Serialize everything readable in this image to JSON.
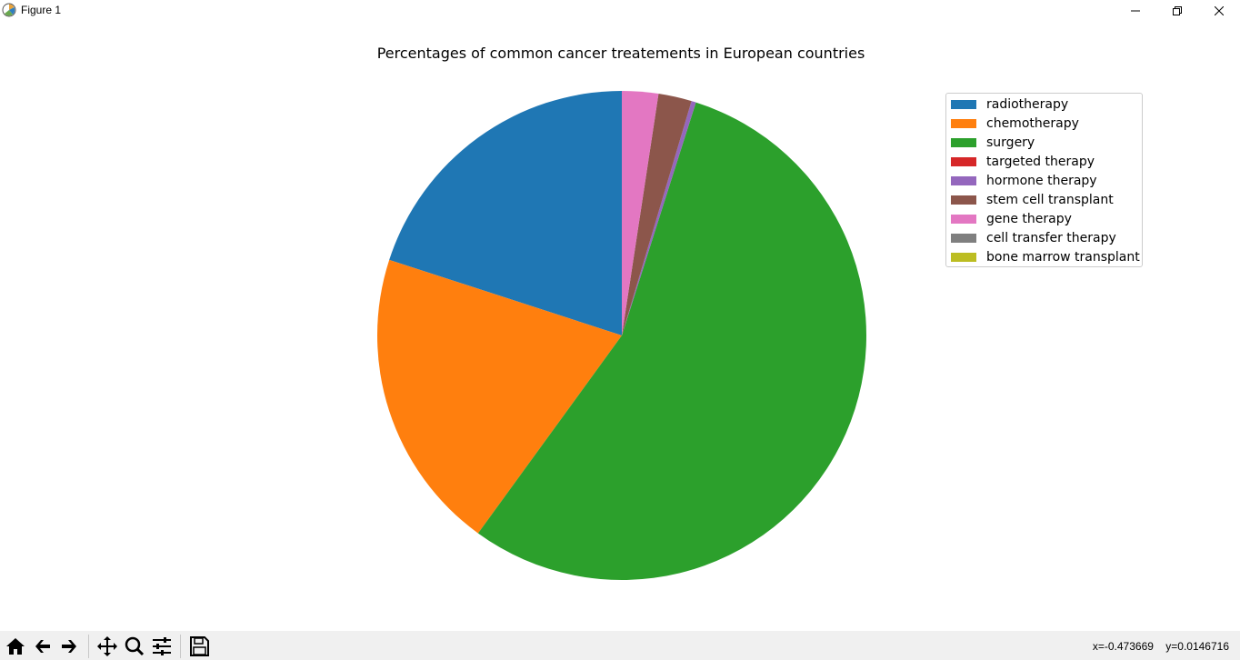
{
  "window": {
    "title": "Figure 1"
  },
  "chart_data": {
    "type": "pie",
    "title": "Percentages of common cancer treatements in European countries",
    "labels": [
      "radiotherapy",
      "chemotherapy",
      "surgery",
      "targeted therapy",
      "hormone therapy",
      "stem cell transplant",
      "gene therapy",
      "cell transfer therapy",
      "bone marrow transplant"
    ],
    "values": [
      20.0,
      20.0,
      55.1,
      0.0,
      0.3,
      2.2,
      2.4,
      0.0,
      0.0
    ],
    "colors": [
      "#1f77b4",
      "#ff7f0e",
      "#2ca02c",
      "#d62728",
      "#9467bd",
      "#8c564b",
      "#e377c2",
      "#7f7f7f",
      "#bcbd22"
    ],
    "start_angle_deg": 90,
    "direction": "counterclockwise",
    "legend_position": "upper right"
  },
  "toolbar": {
    "coordinates": {
      "x": "x=-0.473669",
      "y": "y=0.0146716"
    }
  }
}
